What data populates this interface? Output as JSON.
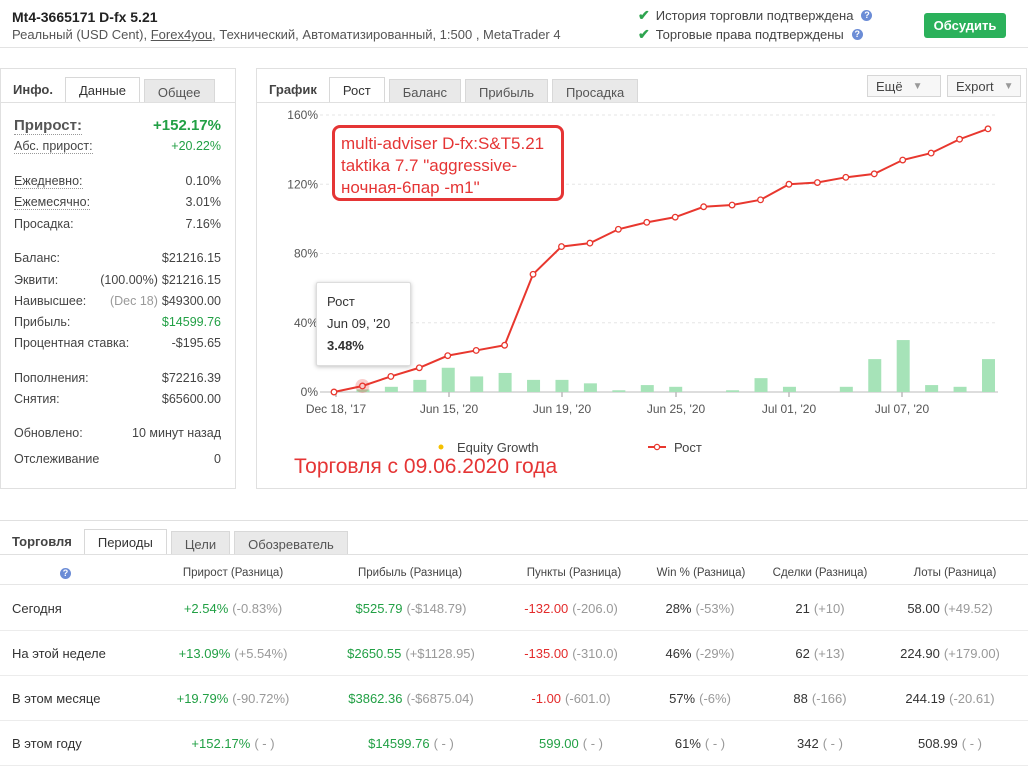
{
  "header": {
    "title": "Mt4-3665171 D-fx 5.21",
    "sub_prefix": "Реальный (USD Cent), ",
    "broker": "Forex4you",
    "sub_suffix": ", Технический, Автоматизированный, 1:500 , MetaTrader 4",
    "verify1": "История торговли подтверждена",
    "verify2": "Торговые права подтверждены",
    "discuss": "Обсудить",
    "check_icon": "✔",
    "q_icon": "?"
  },
  "info": {
    "tab_title": "Инфо.",
    "tabs": [
      "Данные",
      "Общее"
    ],
    "growth_label": "Прирост:",
    "growth": "+152.17%",
    "abs_label": "Абс. прирост:",
    "abs": "+20.22%",
    "daily_label": "Ежедневно:",
    "daily": "0.10%",
    "monthly_label": "Ежемесячно:",
    "monthly": "3.01%",
    "dd_label": "Просадка:",
    "dd": "7.16%",
    "balance_label": "Баланс:",
    "balance": "$21216.15",
    "equity_label": "Эквити:",
    "equity_pct": "(100.00%)",
    "equity": "$21216.15",
    "highest_label": "Наивысшее:",
    "highest_date": "(Dec 18)",
    "highest": "$49300.00",
    "profit_label": "Прибыль:",
    "profit": "$14599.76",
    "interest_label": "Процентная ставка:",
    "interest": "-$195.65",
    "deposits_label": "Пополнения:",
    "deposits": "$72216.39",
    "withdraw_label": "Снятия:",
    "withdraw": "$65600.00",
    "updated_label": "Обновлено:",
    "updated": "10 минут назад",
    "tracking_label": "Отслеживание",
    "tracking": "0"
  },
  "chart": {
    "tab_title": "График",
    "tabs": [
      "Рост",
      "Баланс",
      "Прибыль",
      "Просадка"
    ],
    "more": "Ещё",
    "export": "Export",
    "dd_icon": "▼",
    "tooltip": {
      "title": "Рост",
      "date": "Jun 09, '20",
      "value": "3.48%"
    },
    "annotation": "multi-adviser D-fx:S&T5.21 taktika 7.7 \"aggressive-ночная-6пар -m1\"",
    "note": "Торговля с 09.06.2020 года",
    "legend": {
      "equity": "Equity Growth",
      "growth": "Рост"
    }
  },
  "chart_data": {
    "type": "line",
    "y_ticks": [
      "0%",
      "40%",
      "80%",
      "120%",
      "160%"
    ],
    "ylim": [
      0,
      160
    ],
    "x_ticks": [
      "Dec 18, '17",
      "Jun 15, '20",
      "Jun 19, '20",
      "Jun 25, '20",
      "Jul 01, '20",
      "Jul 07, '20"
    ],
    "series": [
      {
        "name": "Рост",
        "color": "#e8372e",
        "values": [
          0,
          3.48,
          9,
          14,
          21,
          24,
          27,
          68,
          84,
          86,
          94,
          98,
          101,
          107,
          108,
          111,
          120,
          121,
          124,
          126,
          134,
          138,
          146,
          152
        ]
      },
      {
        "name": "Equity Growth",
        "color": "#f5c000",
        "values": []
      }
    ],
    "bars": {
      "color": "#a6e3b8",
      "values": [
        0,
        1.5,
        3,
        7,
        14,
        9,
        11,
        7,
        7,
        5,
        1,
        4,
        3,
        0,
        1,
        8,
        3,
        0,
        3,
        19,
        30,
        4,
        3,
        19
      ]
    }
  },
  "trading": {
    "tab_title": "Торговля",
    "tabs": [
      "Периоды",
      "Цели",
      "Обозреватель"
    ],
    "headers": [
      "Прирост (Разница)",
      "Прибыль (Разница)",
      "Пункты (Разница)",
      "Win % (Разница)",
      "Сделки (Разница)",
      "Лоты (Разница)"
    ],
    "rows": [
      {
        "label": "Сегодня",
        "g": "+2.54%",
        "gd": "(-0.83%)",
        "p": "$525.79",
        "pd": "(-$148.79)",
        "pt": "-132.00",
        "ptd": "(-206.0)",
        "w": "28%",
        "wd": "(-53%)",
        "t": "21",
        "td": "(+10)",
        "l": "58.00",
        "ld": "(+49.52)"
      },
      {
        "label": "На этой неделе",
        "g": "+13.09%",
        "gd": "(+5.54%)",
        "p": "$2650.55",
        "pd": "(+$1128.95)",
        "pt": "-135.00",
        "ptd": "(-310.0)",
        "w": "46%",
        "wd": "(-29%)",
        "t": "62",
        "td": "(+13)",
        "l": "224.90",
        "ld": "(+179.00)"
      },
      {
        "label": "В этом месяце",
        "g": "+19.79%",
        "gd": "(-90.72%)",
        "p": "$3862.36",
        "pd": "(-$6875.04)",
        "pt": "-1.00",
        "ptd": "(-601.0)",
        "w": "57%",
        "wd": "(-6%)",
        "t": "88",
        "td": "(-166)",
        "l": "244.19",
        "ld": "(-20.61)"
      },
      {
        "label": "В этом году",
        "g": "+152.17%",
        "gd": "( - )",
        "p": "$14599.76",
        "pd": "( - )",
        "pt": "599.00",
        "ptd": "( - )",
        "w": "61%",
        "wd": "( - )",
        "t": "342",
        "td": "( - )",
        "l": "508.99",
        "ld": "( - )"
      }
    ]
  }
}
